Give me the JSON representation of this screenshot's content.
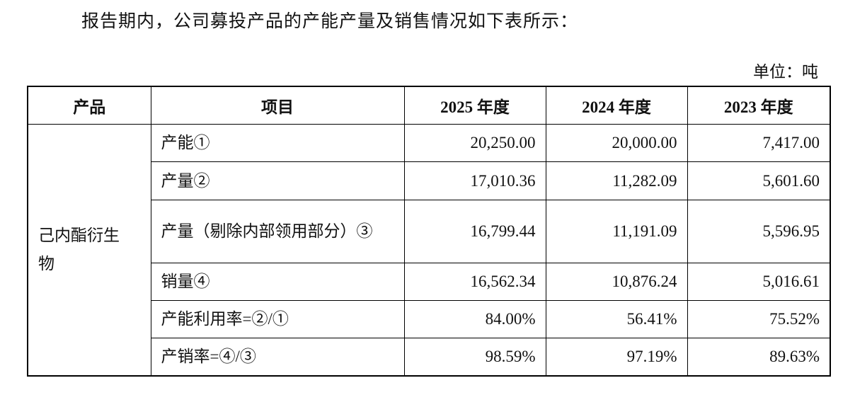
{
  "intro": "报告期内，公司募投产品的产能产量及销售情况如下表所示：",
  "unit": "单位：吨",
  "table": {
    "headers": [
      "产品",
      "项目",
      "2025 年度",
      "2024 年度",
      "2023 年度"
    ],
    "product": "己内酯衍生物",
    "rows": [
      [
        "产能①",
        "20,250.00",
        "20,000.00",
        "7,417.00"
      ],
      [
        "产量②",
        "17,010.36",
        "11,282.09",
        "5,601.60"
      ],
      [
        "产量（剔除内部领用部分）③",
        "16,799.44",
        "11,191.09",
        "5,596.95"
      ],
      [
        "销量④",
        "16,562.34",
        "10,876.24",
        "5,016.61"
      ],
      [
        "产能利用率=②/①",
        "84.00%",
        "56.41%",
        "75.52%"
      ],
      [
        "产销率=④/③",
        "98.59%",
        "97.19%",
        "89.63%"
      ]
    ]
  }
}
